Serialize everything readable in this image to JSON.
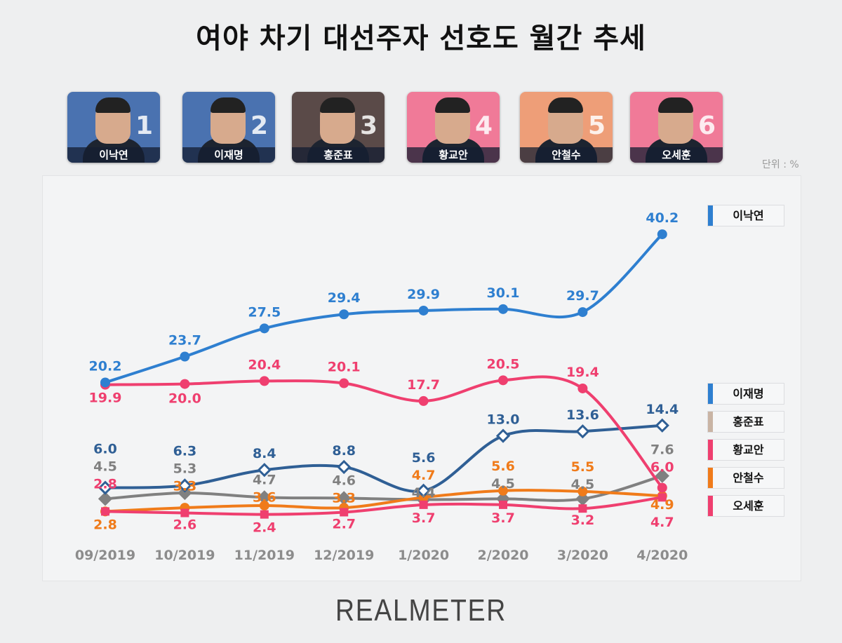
{
  "title": "여야 차기 대선주자 선호도 월간 추세",
  "unit": "단위 : %",
  "brand": "REALMETER",
  "candidates": [
    {
      "name": "이낙연",
      "rank": "1",
      "bg": "#4a72b0"
    },
    {
      "name": "이재명",
      "rank": "2",
      "bg": "#4a72b0"
    },
    {
      "name": "홍준표",
      "rank": "3",
      "bg": "#5a4a48"
    },
    {
      "name": "황교안",
      "rank": "4",
      "bg": "#f07a98"
    },
    {
      "name": "안철수",
      "rank": "5",
      "bg": "#ee9e78"
    },
    {
      "name": "오세훈",
      "rank": "6",
      "bg": "#f07a98"
    }
  ],
  "legend": [
    {
      "name": "이낙연",
      "color": "#2e7fd0"
    },
    {
      "name": "이재명",
      "color": "#2e7fd0"
    },
    {
      "name": "홍준표",
      "color": "#c9b4a4"
    },
    {
      "name": "황교안",
      "color": "#ef3f6f"
    },
    {
      "name": "안철수",
      "color": "#f07b1a"
    },
    {
      "name": "오세훈",
      "color": "#ef3f6f"
    }
  ],
  "chart_data": {
    "type": "line",
    "categories": [
      "09/2019",
      "10/2019",
      "11/2019",
      "12/2019",
      "1/2020",
      "2/2020",
      "3/2020",
      "4/2020"
    ],
    "ylabel": "단위 : %",
    "grid": false,
    "legend_placement": "right",
    "series": [
      {
        "name": "이낙연",
        "color": "#2e7fd0",
        "marker": "circle",
        "values": [
          20.2,
          23.7,
          27.5,
          29.4,
          29.9,
          30.1,
          29.7,
          40.2
        ]
      },
      {
        "name": "이재명",
        "color": "#2f5f95",
        "marker": "hollow-diamond",
        "values": [
          6.0,
          6.3,
          8.4,
          8.8,
          5.6,
          13.0,
          13.6,
          14.4
        ]
      },
      {
        "name": "홍준표",
        "color": "#808080",
        "marker": "diamond",
        "values": [
          4.5,
          5.3,
          4.7,
          4.6,
          4.4,
          4.5,
          4.5,
          7.6
        ]
      },
      {
        "name": "황교안",
        "color": "#ef3f6f",
        "marker": "circle",
        "values": [
          19.9,
          20.0,
          20.4,
          20.1,
          17.7,
          20.5,
          19.4,
          6.0
        ]
      },
      {
        "name": "안철수",
        "color": "#f07b1a",
        "marker": "circle",
        "values": [
          2.8,
          3.3,
          3.6,
          3.3,
          4.7,
          5.6,
          5.5,
          4.9
        ]
      },
      {
        "name": "오세훈",
        "color": "#ef3f6f",
        "marker": "square",
        "values": [
          2.8,
          2.6,
          2.4,
          2.7,
          3.7,
          3.7,
          3.2,
          4.7
        ]
      }
    ]
  }
}
